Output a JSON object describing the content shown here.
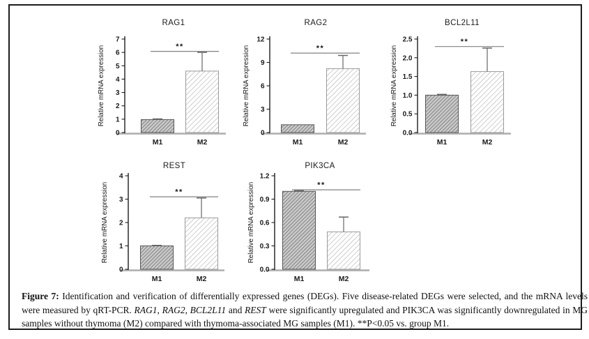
{
  "figure": {
    "caption_segments": [
      {
        "text": "Figure 7:",
        "style": "bold"
      },
      {
        "text": "  Identification and verification of differentially expressed genes (DEGs). Five disease-related DEGs were selected, and the mRNA levels were measured by qRT-PCR. ",
        "style": "normal"
      },
      {
        "text": "RAG1",
        "style": "italic"
      },
      {
        "text": ", ",
        "style": "normal"
      },
      {
        "text": "RAG2",
        "style": "italic"
      },
      {
        "text": ", ",
        "style": "normal"
      },
      {
        "text": "BCL2L11",
        "style": "italic"
      },
      {
        "text": " and ",
        "style": "normal"
      },
      {
        "text": "REST",
        "style": "italic"
      },
      {
        "text": " were significantly upregulated and PIK3CA was significantly downregulated in MG samples without thymoma (M2) compared with thymoma-associated MG samples (M1). **P<0.05 vs. group M1.",
        "style": "normal"
      }
    ]
  },
  "chart_data": [
    {
      "type": "bar",
      "title": "RAG1",
      "ylabel": "Relative mRNA expression",
      "categories": [
        "M1",
        "M2"
      ],
      "values": [
        0.97,
        4.6
      ],
      "errors": [
        0.05,
        1.4
      ],
      "ylim": [
        0,
        7
      ],
      "yticks": [
        "0",
        "1",
        "2",
        "3",
        "4",
        "5",
        "6",
        "7"
      ],
      "significance": {
        "label": "**",
        "level": 6.08
      },
      "legend": "none",
      "grid": false
    },
    {
      "type": "bar",
      "title": "RAG2",
      "ylabel": "Relative mRNA expression",
      "categories": [
        "M1",
        "M2"
      ],
      "values": [
        1.0,
        8.2
      ],
      "errors": [
        0,
        1.7
      ],
      "ylim": [
        0,
        12
      ],
      "yticks": [
        "0",
        "3",
        "6",
        "9",
        "12"
      ],
      "significance": {
        "label": "**",
        "level": 10.2
      },
      "legend": "none",
      "grid": false
    },
    {
      "type": "bar",
      "title": "BCL2L11",
      "ylabel": "Relative mRNA expression",
      "categories": [
        "M1",
        "M2"
      ],
      "values": [
        1.0,
        1.63
      ],
      "errors": [
        0.02,
        0.63
      ],
      "ylim": [
        0,
        2.5
      ],
      "yticks": [
        "0.0",
        "0.5",
        "1.0",
        "1.5",
        "2.0",
        "2.5"
      ],
      "significance": {
        "label": "**",
        "level": 2.3
      },
      "legend": "none",
      "grid": false
    },
    {
      "type": "bar",
      "title": "REST",
      "ylabel": "Relative mRNA expression",
      "categories": [
        "M1",
        "M2"
      ],
      "values": [
        1.0,
        2.2
      ],
      "errors": [
        0.02,
        0.85
      ],
      "ylim": [
        0,
        4
      ],
      "yticks": [
        "0",
        "1",
        "2",
        "3",
        "4"
      ],
      "significance": {
        "label": "**",
        "level": 3.1
      },
      "legend": "none",
      "grid": false
    },
    {
      "type": "bar",
      "title": "PIK3CA",
      "ylabel": "Relative mRNA expression",
      "categories": [
        "M1",
        "M2"
      ],
      "values": [
        1.0,
        0.48
      ],
      "errors": [
        0.01,
        0.19
      ],
      "ylim": [
        0,
        1.2
      ],
      "yticks": [
        "0.0",
        "0.3",
        "0.6",
        "0.9",
        "1.2"
      ],
      "significance": {
        "label": "**",
        "level": 1.02
      },
      "legend": "none",
      "grid": false
    }
  ],
  "colors": {
    "m1_fill": "#c9c9c9",
    "m1_hatch": "#6e6e6e",
    "m1_stroke": "#565656",
    "m2_fill": "#ffffff",
    "m2_hatch": "#b3b3b3",
    "m2_stroke": "#9a9a9a",
    "axis": "#1c1c1c",
    "baseline": "#b0b0b0",
    "error": "#666666",
    "sig_line": "#808080",
    "text": "#1a1a1a",
    "frame_border": "#1c1c1c"
  }
}
